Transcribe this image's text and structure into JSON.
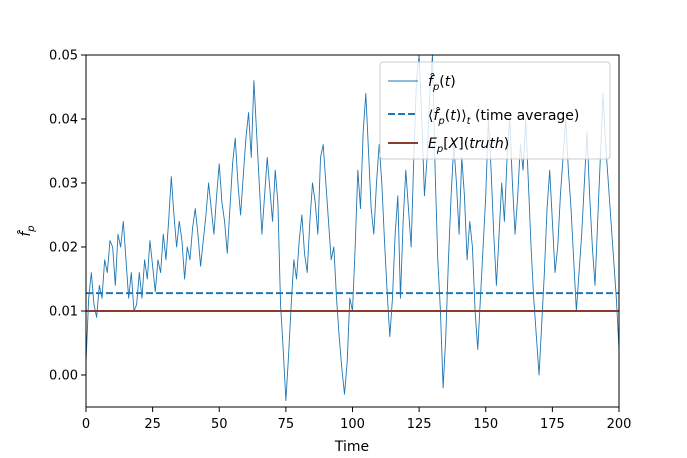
{
  "chart_data": {
    "type": "line",
    "title": "",
    "xlabel": "Time",
    "ylabel": "f̂_p",
    "xlim": [
      0,
      200
    ],
    "ylim": [
      -0.005,
      0.05
    ],
    "xticks": [
      0,
      25,
      50,
      75,
      100,
      125,
      150,
      175,
      200
    ],
    "xtick_labels": [
      "0",
      "25",
      "50",
      "75",
      "100",
      "125",
      "150",
      "175",
      "200"
    ],
    "yticks": [
      0.0,
      0.01,
      0.02,
      0.03,
      0.04,
      0.05
    ],
    "ytick_labels": [
      "0.00",
      "0.01",
      "0.02",
      "0.03",
      "0.04",
      "0.05"
    ],
    "grid": false,
    "legend_position": "top-right",
    "colors": {
      "trace": "#1f77b4",
      "average": "#1f77b4",
      "truth": "#8c3b2f"
    },
    "series": [
      {
        "name": "f̂_p(t)",
        "style": "solid-thin",
        "x": [
          0,
          1,
          2,
          3,
          4,
          5,
          6,
          7,
          8,
          9,
          10,
          11,
          12,
          13,
          14,
          15,
          16,
          17,
          18,
          19,
          20,
          21,
          22,
          23,
          24,
          25,
          26,
          27,
          28,
          29,
          30,
          31,
          32,
          33,
          34,
          35,
          36,
          37,
          38,
          39,
          40,
          41,
          42,
          43,
          44,
          45,
          46,
          47,
          48,
          49,
          50,
          51,
          52,
          53,
          54,
          55,
          56,
          57,
          58,
          59,
          60,
          61,
          62,
          63,
          64,
          65,
          66,
          67,
          68,
          69,
          70,
          71,
          72,
          73,
          74,
          75,
          76,
          77,
          78,
          79,
          80,
          81,
          82,
          83,
          84,
          85,
          86,
          87,
          88,
          89,
          90,
          91,
          92,
          93,
          94,
          95,
          96,
          97,
          98,
          99,
          100,
          101,
          102,
          103,
          104,
          105,
          106,
          107,
          108,
          109,
          110,
          111,
          112,
          113,
          114,
          115,
          116,
          117,
          118,
          119,
          120,
          121,
          122,
          123,
          124,
          125,
          126,
          127,
          128,
          129,
          130,
          131,
          132,
          133,
          134,
          135,
          136,
          137,
          138,
          139,
          140,
          141,
          142,
          143,
          144,
          145,
          146,
          147,
          148,
          149,
          150,
          151,
          152,
          153,
          154,
          155,
          156,
          157,
          158,
          159,
          160,
          161,
          162,
          163,
          164,
          165,
          166,
          167,
          168,
          169,
          170,
          171,
          172,
          173,
          174,
          175,
          176,
          177,
          178,
          179,
          180,
          181,
          182,
          183,
          184,
          185,
          186,
          187,
          188,
          189,
          190,
          191,
          192,
          193,
          194,
          195,
          196,
          197,
          198,
          199,
          200
        ],
        "values": [
          0.002,
          0.012,
          0.016,
          0.011,
          0.009,
          0.014,
          0.012,
          0.018,
          0.016,
          0.021,
          0.02,
          0.014,
          0.022,
          0.02,
          0.024,
          0.018,
          0.012,
          0.016,
          0.01,
          0.011,
          0.016,
          0.012,
          0.018,
          0.015,
          0.021,
          0.017,
          0.013,
          0.018,
          0.016,
          0.022,
          0.018,
          0.024,
          0.031,
          0.025,
          0.02,
          0.024,
          0.021,
          0.015,
          0.02,
          0.018,
          0.023,
          0.026,
          0.022,
          0.017,
          0.021,
          0.025,
          0.03,
          0.026,
          0.022,
          0.028,
          0.033,
          0.027,
          0.024,
          0.019,
          0.026,
          0.033,
          0.037,
          0.03,
          0.025,
          0.031,
          0.037,
          0.041,
          0.034,
          0.046,
          0.038,
          0.03,
          0.022,
          0.028,
          0.034,
          0.029,
          0.024,
          0.032,
          0.027,
          0.011,
          0.004,
          -0.004,
          0.003,
          0.011,
          0.018,
          0.015,
          0.021,
          0.025,
          0.019,
          0.016,
          0.024,
          0.03,
          0.027,
          0.022,
          0.034,
          0.036,
          0.03,
          0.024,
          0.018,
          0.02,
          0.012,
          0.006,
          0.001,
          -0.003,
          0.002,
          0.012,
          0.01,
          0.02,
          0.032,
          0.026,
          0.038,
          0.044,
          0.035,
          0.026,
          0.022,
          0.03,
          0.036,
          0.03,
          0.021,
          0.013,
          0.006,
          0.012,
          0.022,
          0.028,
          0.012,
          0.024,
          0.032,
          0.026,
          0.02,
          0.034,
          0.046,
          0.05,
          0.04,
          0.028,
          0.034,
          0.044,
          0.05,
          0.032,
          0.018,
          0.01,
          -0.002,
          0.006,
          0.018,
          0.028,
          0.036,
          0.03,
          0.022,
          0.034,
          0.028,
          0.018,
          0.024,
          0.02,
          0.01,
          0.004,
          0.012,
          0.02,
          0.028,
          0.04,
          0.032,
          0.022,
          0.014,
          0.022,
          0.03,
          0.024,
          0.034,
          0.04,
          0.03,
          0.022,
          0.028,
          0.036,
          0.032,
          0.04,
          0.03,
          0.02,
          0.012,
          0.006,
          0.0,
          0.008,
          0.016,
          0.026,
          0.032,
          0.024,
          0.016,
          0.02,
          0.028,
          0.034,
          0.04,
          0.032,
          0.026,
          0.018,
          0.01,
          0.016,
          0.022,
          0.03,
          0.038,
          0.028,
          0.02,
          0.014,
          0.024,
          0.034,
          0.044,
          0.036,
          0.03,
          0.024,
          0.018,
          0.012,
          0.004
        ]
      },
      {
        "name": "⟨f̂_p(t)⟩_t (time average)",
        "style": "dashed",
        "x": [
          0,
          200
        ],
        "values": [
          0.0128,
          0.0128
        ]
      },
      {
        "name": "E_p[X](truth)",
        "style": "solid",
        "x": [
          0,
          200
        ],
        "values": [
          0.01,
          0.01
        ]
      }
    ]
  }
}
